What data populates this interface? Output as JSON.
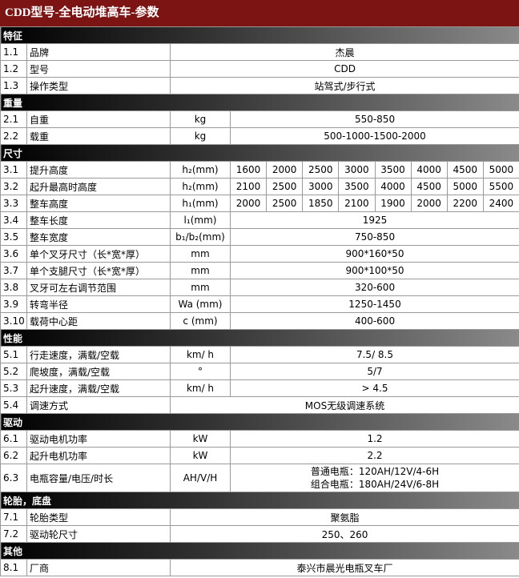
{
  "title": "CDD型号-全电动堆高车-参数",
  "sections": [
    {
      "title": "特征",
      "rows": [
        {
          "id": "1.1",
          "name": "品牌",
          "value": "杰晨"
        },
        {
          "id": "1.2",
          "name": "型号",
          "value": "CDD"
        },
        {
          "id": "1.3",
          "name": "操作类型",
          "value": "站驾式/步行式"
        }
      ]
    },
    {
      "title": "重量",
      "rows": [
        {
          "id": "2.1",
          "name": "自重",
          "unit": "kg",
          "value": "550-850"
        },
        {
          "id": "2.2",
          "name": "载重",
          "unit": "kg",
          "value": "500-1000-1500-2000"
        }
      ]
    },
    {
      "title": "尺寸",
      "rows": [
        {
          "id": "3.1",
          "name": "提升高度",
          "unit": "h₂(mm)",
          "values": [
            "1600",
            "2000",
            "2500",
            "3000",
            "3500",
            "4000",
            "4500",
            "5000"
          ]
        },
        {
          "id": "3.2",
          "name": "起升最高时高度",
          "unit": "h₂(mm)",
          "values": [
            "2100",
            "2500",
            "3000",
            "3500",
            "4000",
            "4500",
            "5000",
            "5500"
          ]
        },
        {
          "id": "3.3",
          "name": "整车高度",
          "unit": "h₁(mm)",
          "values": [
            "2000",
            "2500",
            "1850",
            "2100",
            "1900",
            "2000",
            "2200",
            "2400"
          ]
        },
        {
          "id": "3.4",
          "name": "整车长度",
          "unit": "l₁(mm)",
          "value": "1925"
        },
        {
          "id": "3.5",
          "name": "整车宽度",
          "unit": "b₁/b₂(mm)",
          "value": "750-850"
        },
        {
          "id": "3.6",
          "name": "单个叉牙尺寸（长*宽*厚）",
          "unit": "mm",
          "value": "900*160*50"
        },
        {
          "id": "3.7",
          "name": "单个支腿尺寸（长*宽*厚）",
          "unit": "mm",
          "value": "900*100*50"
        },
        {
          "id": "3.8",
          "name": "叉牙可左右调节范围",
          "unit": "mm",
          "value": "320-600"
        },
        {
          "id": "3.9",
          "name": "转弯半径",
          "unit": "Wa (mm)",
          "value": "1250-1450"
        },
        {
          "id": "3.10",
          "name": "载荷中心距",
          "unit": "c (mm)",
          "value": "400-600"
        }
      ]
    },
    {
      "title": "性能",
      "rows": [
        {
          "id": "5.1",
          "name": "行走速度，满载/空载",
          "unit": "km/ h",
          "value": "7.5/ 8.5"
        },
        {
          "id": "5.2",
          "name": "爬坡度，满载/空载",
          "unit": "°",
          "value": "5/7"
        },
        {
          "id": "5.3",
          "name": "起升速度，满载/空载",
          "unit": "km/ h",
          "value": "> 4.5"
        },
        {
          "id": "5.4",
          "name": "调速方式",
          "value": "MOS无级调速系统"
        }
      ]
    },
    {
      "title": "驱动",
      "rows": [
        {
          "id": "6.1",
          "name": "驱动电机功率",
          "unit": "kW",
          "value": "1.2"
        },
        {
          "id": "6.2",
          "name": "起升电机功率",
          "unit": "kW",
          "value": "2.2"
        },
        {
          "id": "6.3",
          "name": "电瓶容量/电压/时长",
          "unit": "AH/V/H",
          "lines": [
            "普通电瓶：120AH/12V/4-6H",
            "组合电瓶：180AH/24V/6-8H"
          ]
        }
      ]
    },
    {
      "title": "轮胎，底盘",
      "rows": [
        {
          "id": "7.1",
          "name": "轮胎类型",
          "value": "聚氨脂"
        },
        {
          "id": "7.2",
          "name": "驱动轮尺寸",
          "value": "250、260"
        }
      ]
    },
    {
      "title": "其他",
      "rows": [
        {
          "id": "8.1",
          "name": "厂商",
          "value": "泰兴市晨光电瓶叉车厂"
        }
      ]
    }
  ]
}
